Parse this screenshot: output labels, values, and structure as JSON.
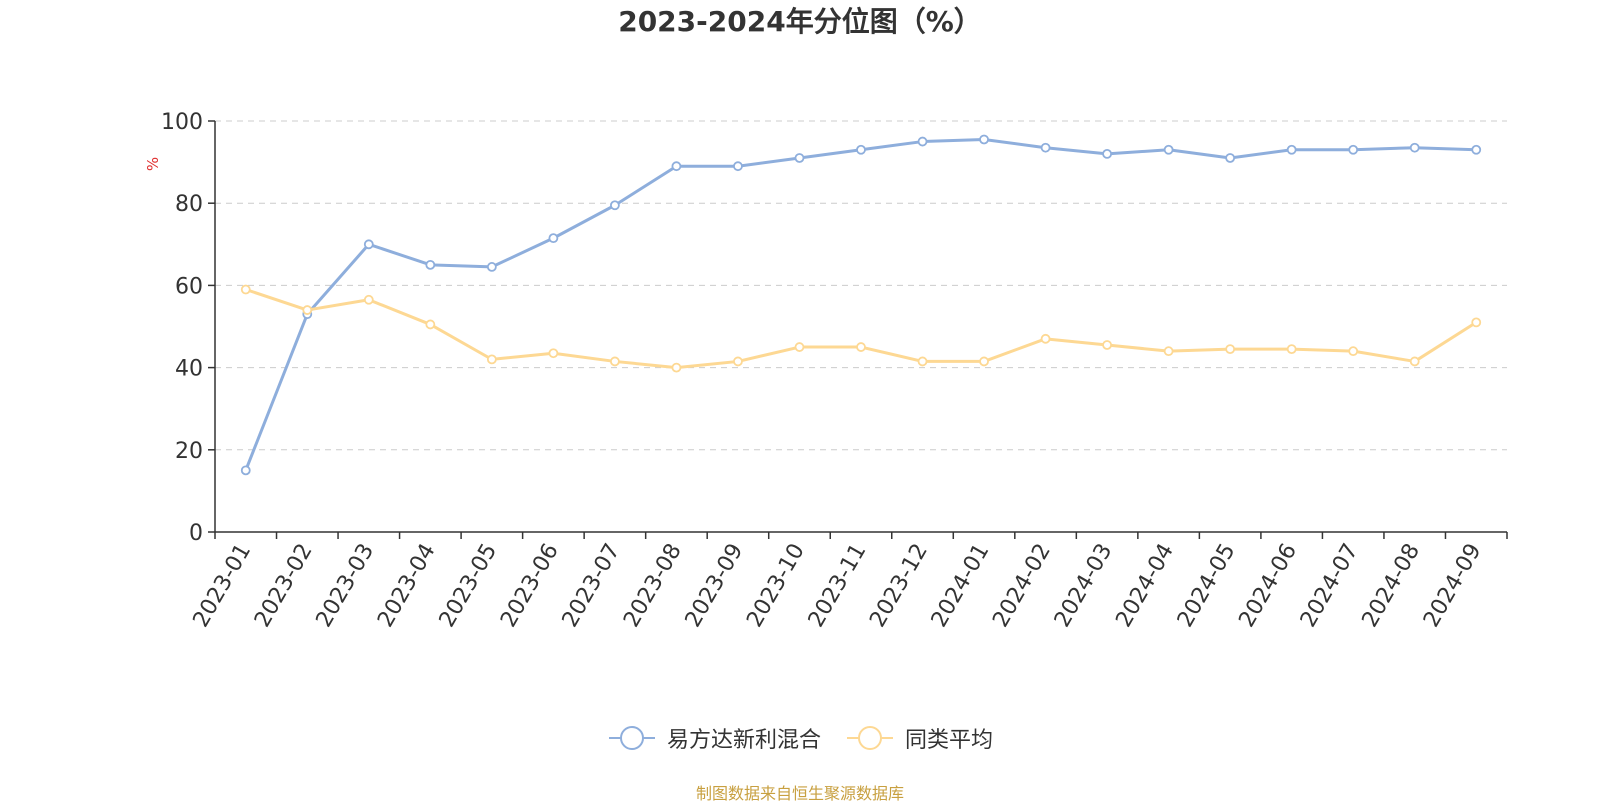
{
  "chart_data": {
    "type": "line",
    "title": "2023-2024年分位图（%）",
    "ylabel": "%",
    "xlabel": "",
    "ylim": [
      0,
      100
    ],
    "yticks": [
      0,
      20,
      40,
      60,
      80,
      100
    ],
    "grid": true,
    "legend_position": "bottom",
    "categories": [
      "2023-01",
      "2023-02",
      "2023-03",
      "2023-04",
      "2023-05",
      "2023-06",
      "2023-07",
      "2023-08",
      "2023-09",
      "2023-10",
      "2023-11",
      "2023-12",
      "2024-01",
      "2024-02",
      "2024-03",
      "2024-04",
      "2024-05",
      "2024-06",
      "2024-07",
      "2024-08",
      "2024-09"
    ],
    "series": [
      {
        "name": "易方达新利混合",
        "color": "#8eaedc",
        "values": [
          15,
          53,
          70,
          65,
          64.5,
          71.5,
          79.5,
          89,
          89,
          91,
          93,
          95,
          95.5,
          93.5,
          92,
          93,
          91,
          93,
          93,
          93.5,
          93
        ]
      },
      {
        "name": "同类平均",
        "color": "#fdd893",
        "values": [
          59,
          54,
          56.5,
          50.5,
          42,
          43.5,
          41.5,
          40,
          41.5,
          45,
          45,
          41.5,
          41.5,
          47,
          45.5,
          44,
          44.5,
          44.5,
          44,
          41.5,
          51
        ]
      }
    ]
  },
  "source_note": "制图数据来自恒生聚源数据库",
  "colors": {
    "axis": "#333333",
    "grid": "#cccccc",
    "ylabel": "#e03030",
    "source": "#c8a040"
  }
}
